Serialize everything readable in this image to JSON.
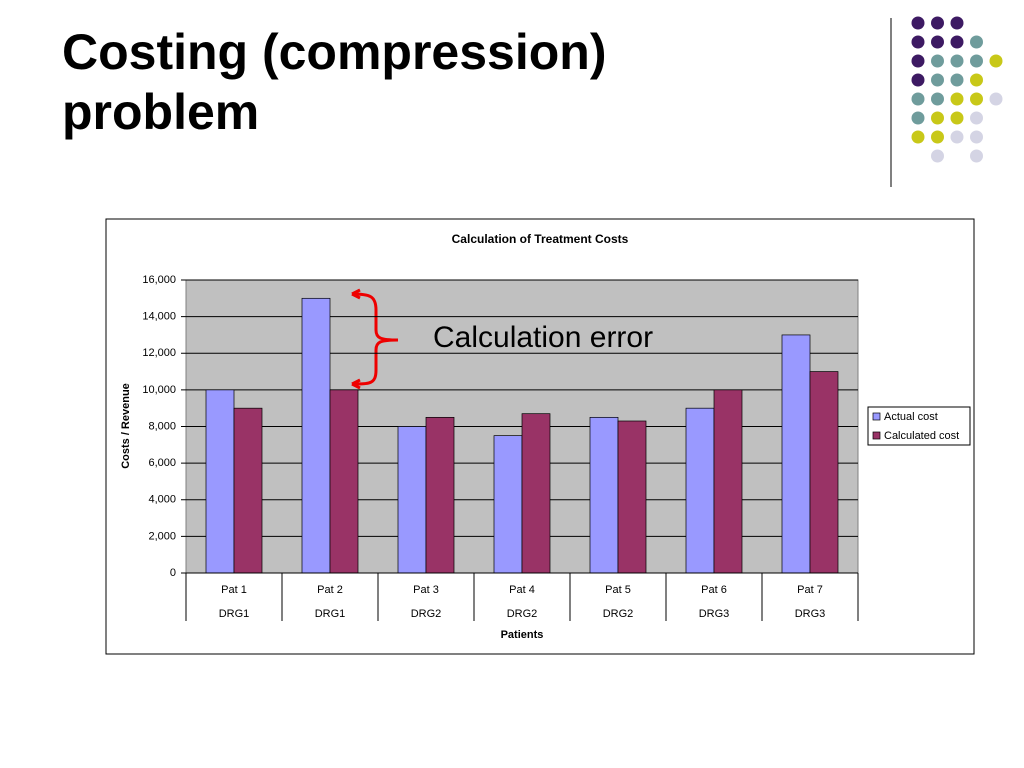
{
  "slide_title": "Costing (compression) problem",
  "chart_data": {
    "type": "bar",
    "title": "Calculation of Treatment Costs",
    "x_label": "Patients",
    "y_label": "Costs / Revenue",
    "annotation": "Calculation error",
    "categories": [
      "Pat 1",
      "Pat 2",
      "Pat 3",
      "Pat 4",
      "Pat 5",
      "Pat 6",
      "Pat 7"
    ],
    "groups": [
      "DRG1",
      "DRG1",
      "DRG2",
      "DRG2",
      "DRG2",
      "DRG3",
      "DRG3"
    ],
    "series": [
      {
        "name": "Actual cost",
        "color": "#9999ff",
        "values": [
          10000,
          15000,
          8000,
          7500,
          8500,
          9000,
          13000
        ]
      },
      {
        "name": "Calculated cost",
        "color": "#993366",
        "values": [
          9000,
          10000,
          8500,
          8700,
          8300,
          10000,
          11000
        ]
      }
    ],
    "ylim": [
      0,
      16000
    ],
    "yticks": [
      0,
      {
        "value": 2000,
        "label": "2,000"
      },
      {
        "value": 4000,
        "label": "4,000"
      },
      {
        "value": 6000,
        "label": "6,000"
      },
      {
        "value": 8000,
        "label": "8,000"
      },
      {
        "value": 10000,
        "label": "10,000"
      },
      {
        "value": 12000,
        "label": "12,000"
      },
      {
        "value": 14000,
        "label": "14,000"
      },
      {
        "value": 16000,
        "label": "16,000"
      }
    ],
    "grid": true,
    "legend": "right"
  }
}
